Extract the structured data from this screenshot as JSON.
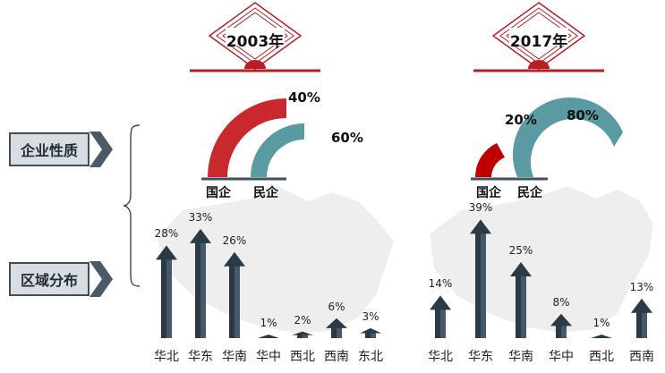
{
  "side_labels": {
    "nature": "企业性质",
    "region": "区域分布"
  },
  "panels": [
    {
      "year": "2003年",
      "ownership": {
        "state_label": "国企",
        "state_pct": "40%",
        "private_label": "民企",
        "private_pct": "60%"
      },
      "bars": {
        "categories": [
          "华北",
          "华东",
          "华南",
          "华中",
          "西北",
          "西南",
          "东北"
        ],
        "labels": [
          "28%",
          "33%",
          "26%",
          "1%",
          "2%",
          "6%",
          "3%"
        ]
      }
    },
    {
      "year": "2017年",
      "ownership": {
        "state_label": "国企",
        "state_pct": "20%",
        "private_label": "民企",
        "private_pct": "80%"
      },
      "bars": {
        "categories": [
          "华北",
          "华东",
          "华南",
          "华中",
          "西北",
          "西南"
        ],
        "labels": [
          "14%",
          "39%",
          "25%",
          "8%",
          "1%",
          "13%"
        ]
      }
    }
  ],
  "colors": {
    "state": "#c8282e",
    "private": "#5a9aa3",
    "arrow": "#2b3a47",
    "emblem": "#b81e24"
  },
  "chart_data": [
    {
      "type": "pie",
      "title": "2003年",
      "categories": [
        "国企",
        "民企"
      ],
      "values": [
        40,
        60
      ]
    },
    {
      "type": "bar",
      "title": "2003年",
      "categories": [
        "华北",
        "华东",
        "华南",
        "华中",
        "西北",
        "西南",
        "东北"
      ],
      "values": [
        28,
        33,
        26,
        1,
        2,
        6,
        3
      ]
    },
    {
      "type": "pie",
      "title": "2017年",
      "categories": [
        "国企",
        "民企"
      ],
      "values": [
        20,
        80
      ]
    },
    {
      "type": "bar",
      "title": "2017年",
      "categories": [
        "华北",
        "华东",
        "华南",
        "华中",
        "西北",
        "西南"
      ],
      "values": [
        14,
        39,
        25,
        8,
        1,
        13
      ]
    }
  ]
}
